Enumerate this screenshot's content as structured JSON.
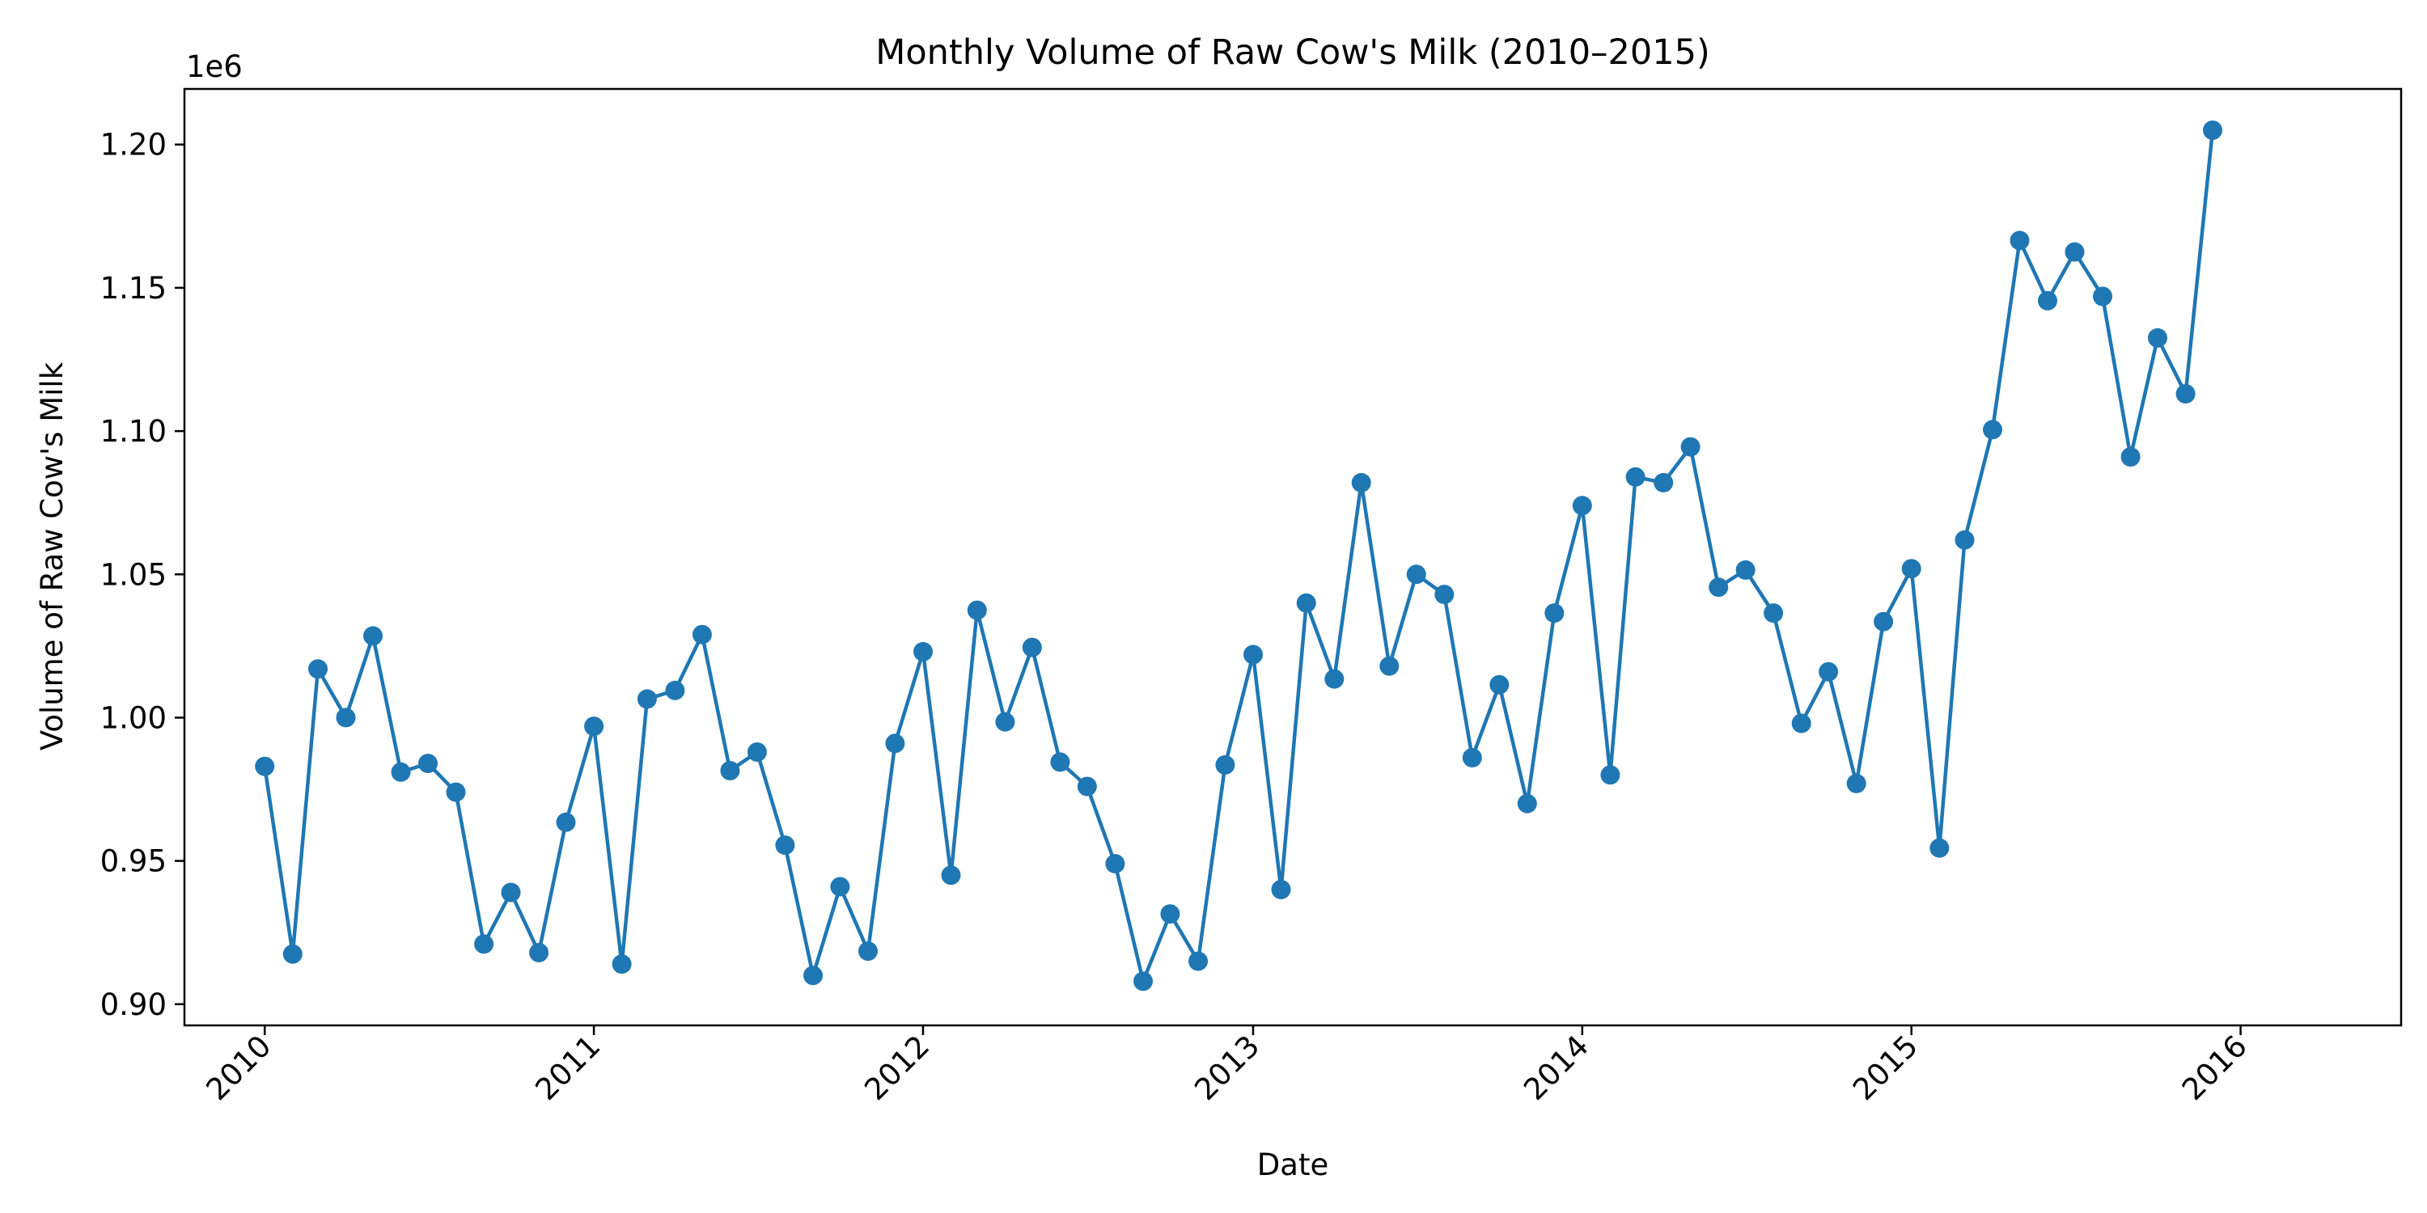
{
  "chart_data": {
    "type": "line",
    "title": "Monthly Volume of Raw Cow's Milk (2010–2015)",
    "xlabel": "Date",
    "ylabel": "Volume of Raw Cow's Milk",
    "y_offset_label": "1e6",
    "x_ticks": [
      "2010",
      "2011",
      "2012",
      "2013",
      "2014",
      "2015",
      "2016"
    ],
    "y_ticks": [
      "0.90",
      "0.95",
      "1.00",
      "1.05",
      "1.10",
      "1.15",
      "1.20"
    ],
    "xlim": [
      "2009-10-04",
      "2016-06-27"
    ],
    "ylim": [
      892600,
      1219400
    ],
    "grid": false,
    "marker": "circle",
    "series": [
      {
        "color": "#1f77b4",
        "x": [
          "2010-01-01",
          "2010-02-01",
          "2010-03-01",
          "2010-04-01",
          "2010-05-01",
          "2010-06-01",
          "2010-07-01",
          "2010-08-01",
          "2010-09-01",
          "2010-10-01",
          "2010-11-01",
          "2010-12-01",
          "2011-01-01",
          "2011-02-01",
          "2011-03-01",
          "2011-04-01",
          "2011-05-01",
          "2011-06-01",
          "2011-07-01",
          "2011-08-01",
          "2011-09-01",
          "2011-10-01",
          "2011-11-01",
          "2011-12-01",
          "2012-01-01",
          "2012-02-01",
          "2012-03-01",
          "2012-04-01",
          "2012-05-01",
          "2012-06-01",
          "2012-07-01",
          "2012-08-01",
          "2012-09-01",
          "2012-10-01",
          "2012-11-01",
          "2012-12-01",
          "2013-01-01",
          "2013-02-01",
          "2013-03-01",
          "2013-04-01",
          "2013-05-01",
          "2013-06-01",
          "2013-07-01",
          "2013-08-01",
          "2013-09-01",
          "2013-10-01",
          "2013-11-01",
          "2013-12-01",
          "2014-01-01",
          "2014-02-01",
          "2014-03-01",
          "2014-04-01",
          "2014-05-01",
          "2014-06-01",
          "2014-07-01",
          "2014-08-01",
          "2014-09-01",
          "2014-10-01",
          "2014-11-01",
          "2014-12-01",
          "2015-01-01",
          "2015-02-01",
          "2015-03-01",
          "2015-04-01",
          "2015-05-01",
          "2015-06-01",
          "2015-07-01",
          "2015-08-01",
          "2015-09-01",
          "2015-10-01",
          "2015-11-01",
          "2015-12-01"
        ],
        "values": [
          983000,
          917500,
          1017000,
          1000000,
          1028500,
          981000,
          984000,
          974000,
          921000,
          939000,
          918000,
          963500,
          997000,
          914000,
          1006500,
          1009500,
          1029000,
          981500,
          988000,
          955500,
          910000,
          941000,
          918500,
          991000,
          1023000,
          945000,
          1037500,
          998500,
          1024500,
          984500,
          976000,
          949000,
          908000,
          931500,
          915000,
          983500,
          1022000,
          940000,
          1040000,
          1013500,
          1082000,
          1018000,
          1050000,
          1043000,
          986000,
          1011500,
          970000,
          1036500,
          1074000,
          980000,
          1084000,
          1082000,
          1094500,
          1045500,
          1051500,
          1036500,
          998000,
          1016000,
          977000,
          1033500,
          1052000,
          954500,
          1062000,
          1100500,
          1166500,
          1145500,
          1162500,
          1147000,
          1091000,
          1132500,
          1113000,
          1205000
        ]
      }
    ]
  }
}
